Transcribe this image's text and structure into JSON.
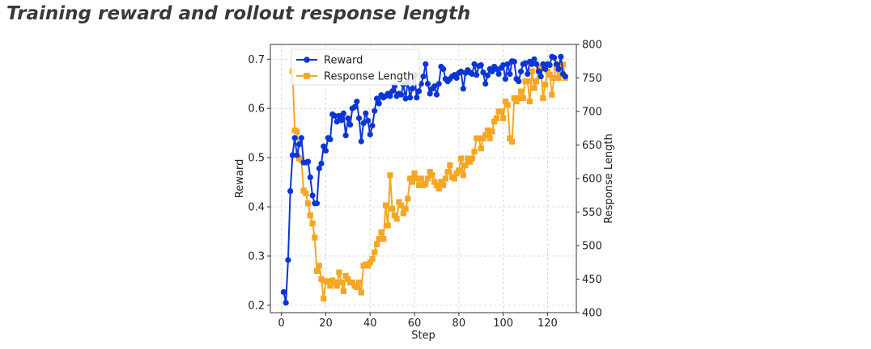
{
  "page": {
    "heading": "Training reward and rollout response length"
  },
  "chart_data": {
    "type": "line",
    "title": "",
    "xlabel": "Step",
    "ylabel_left": "Reward",
    "ylabel_right": "Response Length",
    "xlim": [
      -5,
      133
    ],
    "ylim_left": [
      0.185,
      0.73
    ],
    "ylim_right": [
      400,
      800
    ],
    "x_ticks": [
      0,
      20,
      40,
      60,
      80,
      100,
      120
    ],
    "y_left_ticks": [
      0.2,
      0.3,
      0.4,
      0.5,
      0.6,
      0.7
    ],
    "y_right_ticks": [
      400,
      450,
      500,
      550,
      600,
      650,
      700,
      750,
      800
    ],
    "grid": true,
    "legend_position": "top-left",
    "colors": {
      "reward": "#0b36d6",
      "response_length": "#f5a623"
    },
    "series": [
      {
        "name": "Reward",
        "axis": "left",
        "marker": "circle",
        "x": [
          1,
          2,
          3,
          4,
          5,
          6,
          7,
          8,
          9,
          10,
          11,
          12,
          13,
          14,
          15,
          16,
          17,
          18,
          19,
          20,
          21,
          22,
          23,
          24,
          25,
          26,
          27,
          28,
          29,
          30,
          31,
          32,
          33,
          34,
          35,
          36,
          37,
          38,
          39,
          40,
          41,
          42,
          43,
          44,
          45,
          46,
          47,
          48,
          49,
          50,
          51,
          52,
          53,
          54,
          55,
          56,
          57,
          58,
          59,
          60,
          61,
          62,
          63,
          64,
          65,
          66,
          67,
          68,
          69,
          70,
          71,
          72,
          73,
          74,
          75,
          76,
          77,
          78,
          79,
          80,
          81,
          82,
          83,
          84,
          85,
          86,
          87,
          88,
          89,
          90,
          91,
          92,
          93,
          94,
          95,
          96,
          97,
          98,
          99,
          100,
          101,
          102,
          103,
          104,
          105,
          106,
          107,
          108,
          109,
          110,
          111,
          112,
          113,
          114,
          115,
          116,
          117,
          118,
          119,
          120,
          121,
          122,
          123,
          124,
          125,
          126,
          127,
          128
        ],
        "values": [
          0.227,
          0.205,
          0.292,
          0.432,
          0.505,
          0.54,
          0.505,
          0.527,
          0.54,
          0.49,
          0.49,
          0.492,
          0.46,
          0.423,
          0.407,
          0.407,
          0.478,
          0.488,
          0.523,
          0.514,
          0.54,
          0.537,
          0.588,
          0.585,
          0.573,
          0.585,
          0.576,
          0.59,
          0.545,
          0.58,
          0.567,
          0.6,
          0.603,
          0.614,
          0.58,
          0.533,
          0.57,
          0.59,
          0.575,
          0.547,
          0.565,
          0.595,
          0.62,
          0.61,
          0.627,
          0.622,
          0.625,
          0.63,
          0.625,
          0.635,
          0.645,
          0.625,
          0.63,
          0.628,
          0.648,
          0.62,
          0.655,
          0.622,
          0.64,
          0.668,
          0.622,
          0.635,
          0.65,
          0.665,
          0.69,
          0.65,
          0.63,
          0.64,
          0.645,
          0.628,
          0.65,
          0.685,
          0.68,
          0.66,
          0.655,
          0.66,
          0.665,
          0.668,
          0.662,
          0.672,
          0.675,
          0.64,
          0.672,
          0.678,
          0.673,
          0.67,
          0.69,
          0.668,
          0.686,
          0.688,
          0.673,
          0.65,
          0.667,
          0.68,
          0.675,
          0.685,
          0.68,
          0.67,
          0.682,
          0.688,
          0.66,
          0.69,
          0.67,
          0.696,
          0.695,
          0.66,
          0.655,
          0.675,
          0.69,
          0.692,
          0.67,
          0.695,
          0.69,
          0.7,
          0.69,
          0.675,
          0.665,
          0.69,
          0.68,
          0.69,
          0.688,
          0.705,
          0.703,
          0.69,
          0.68,
          0.705,
          0.67,
          0.665
        ]
      },
      {
        "name": "Response Length",
        "axis": "right",
        "marker": "square",
        "x": [
          5,
          6,
          7,
          8,
          9,
          10,
          11,
          12,
          13,
          14,
          15,
          16,
          17,
          18,
          19,
          20,
          21,
          22,
          23,
          24,
          25,
          26,
          27,
          28,
          29,
          30,
          31,
          32,
          33,
          34,
          35,
          36,
          37,
          38,
          39,
          40,
          41,
          42,
          43,
          44,
          45,
          46,
          47,
          48,
          49,
          50,
          51,
          52,
          53,
          54,
          55,
          56,
          57,
          58,
          59,
          60,
          61,
          62,
          63,
          64,
          65,
          66,
          67,
          68,
          69,
          70,
          71,
          72,
          73,
          74,
          75,
          76,
          77,
          78,
          79,
          80,
          81,
          82,
          83,
          84,
          85,
          86,
          87,
          88,
          89,
          90,
          91,
          92,
          93,
          94,
          95,
          96,
          97,
          98,
          99,
          100,
          101,
          102,
          103,
          104,
          105,
          106,
          107,
          108,
          109,
          110,
          111,
          112,
          113,
          114,
          115,
          116,
          117,
          118,
          119,
          120,
          121,
          122,
          123,
          124,
          125,
          126,
          127,
          128
        ],
        "values": [
          760,
          672,
          670,
          630,
          628,
          582,
          578,
          563,
          545,
          533,
          512,
          462,
          470,
          450,
          421,
          447,
          446,
          440,
          448,
          445,
          440,
          460,
          445,
          432,
          455,
          450,
          445,
          445,
          440,
          438,
          445,
          430,
          470,
          472,
          470,
          475,
          480,
          490,
          502,
          510,
          520,
          510,
          560,
          530,
          605,
          555,
          545,
          540,
          565,
          560,
          548,
          555,
          570,
          600,
          595,
          608,
          600,
          590,
          600,
          590,
          592,
          600,
          610,
          605,
          595,
          590,
          585,
          595,
          590,
          600,
          610,
          620,
          602,
          600,
          608,
          612,
          630,
          605,
          620,
          630,
          625,
          630,
          640,
          660,
          660,
          645,
          660,
          665,
          672,
          660,
          670,
          685,
          690,
          700,
          700,
          690,
          715,
          710,
          660,
          655,
          720,
          715,
          720,
          730,
          720,
          745,
          745,
          715,
          760,
          735,
          745,
          765,
          765,
          720,
          740,
          760,
          755,
          725,
          750,
          765,
          750,
          760,
          770,
          750
        ]
      }
    ]
  }
}
